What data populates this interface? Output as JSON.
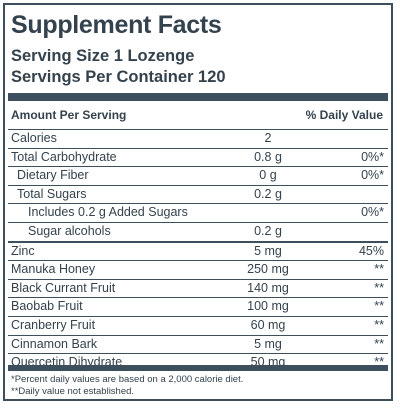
{
  "title": "Supplement Facts",
  "serving_size": "Serving Size 1 Lozenge",
  "servings_per_container": "Servings Per Container 120",
  "header": {
    "amount": "Amount Per Serving",
    "daily_value": "% Daily Value"
  },
  "rows": [
    {
      "name": "Calories",
      "amount": "2"
    },
    {
      "name": "Total Carbohydrate",
      "amount": "0.8 g",
      "dv": "0%*"
    },
    {
      "name": "Dietary Fiber",
      "amount": "0 g",
      "dv": "0%*"
    },
    {
      "name": "Total Sugars",
      "amount": "0.2 g"
    },
    {
      "name": "Includes 0.2 g Added Sugars",
      "dv": "0%*"
    },
    {
      "name": "Sugar alcohols",
      "amount": "0.2 g"
    },
    {
      "name": "Zinc",
      "amount": "5 mg",
      "dv": "45%"
    },
    {
      "name": "Manuka Honey",
      "amount": "250 mg",
      "dv": "**"
    },
    {
      "name": "Black Currant Fruit",
      "amount": "140 mg",
      "dv": "**"
    },
    {
      "name": "Baobab Fruit",
      "amount": "100 mg",
      "dv": "**"
    },
    {
      "name": "Cranberry Fruit",
      "amount": "60 mg",
      "dv": "**"
    },
    {
      "name": "Cinnamon Bark",
      "amount": "5 mg",
      "dv": "**"
    },
    {
      "name": "Quercetin Dihydrate",
      "amount": "50 mg",
      "dv": "**"
    }
  ],
  "footnotes": [
    "*Percent daily values are based on a 2,000 calorie diet.",
    "**Daily value not established."
  ]
}
